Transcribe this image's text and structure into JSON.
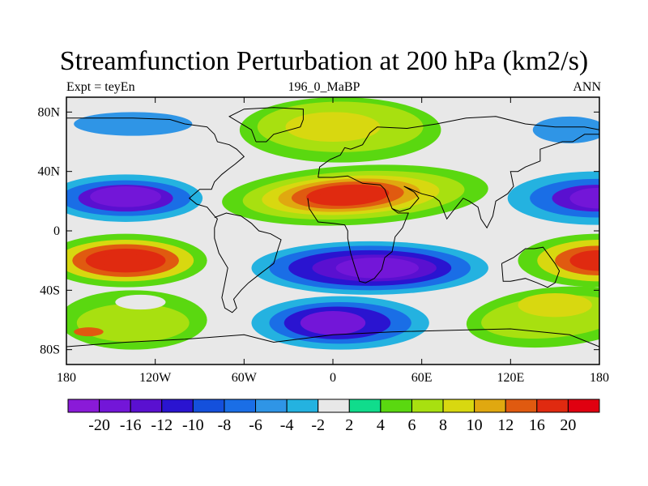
{
  "chart_data": {
    "type": "heatmap",
    "title": "Streamfunction Perturbation at 200 hPa (km2/s)",
    "subtitle_left": "Expt = teyEn",
    "subtitle_center": "196_0_MaBP",
    "subtitle_right": "ANN",
    "x_ticks": [
      {
        "value": -180,
        "label": "180"
      },
      {
        "value": -120,
        "label": "120W"
      },
      {
        "value": -60,
        "label": "60W"
      },
      {
        "value": 0,
        "label": "0"
      },
      {
        "value": 60,
        "label": "60E"
      },
      {
        "value": 120,
        "label": "120E"
      },
      {
        "value": 180,
        "label": "180"
      }
    ],
    "y_ticks": [
      {
        "value": 80,
        "label": "80N"
      },
      {
        "value": 40,
        "label": "40N"
      },
      {
        "value": 0,
        "label": "0"
      },
      {
        "value": -40,
        "label": "40S"
      },
      {
        "value": -80,
        "label": "80S"
      }
    ],
    "xlim": [
      -180,
      180
    ],
    "ylim": [
      -90,
      90
    ],
    "colorbar": {
      "levels": [
        -20,
        -16,
        -12,
        -10,
        -8,
        -6,
        -4,
        -2,
        2,
        4,
        6,
        8,
        10,
        12,
        16,
        20
      ],
      "labels": [
        "-20",
        "-16",
        "-12",
        "-10",
        "-8",
        "-6",
        "-4",
        "-2",
        "2",
        "4",
        "6",
        "8",
        "10",
        "12",
        "16",
        "20"
      ],
      "colors": [
        "#8a1ad8",
        "#7316d8",
        "#5a10d0",
        "#2a14d0",
        "#1450dc",
        "#1a6ee6",
        "#2f95e6",
        "#24b2e0",
        "#e8e8e8",
        "#10dc8c",
        "#5ad810",
        "#a8e010",
        "#d8d810",
        "#e0a810",
        "#e05a10",
        "#e02a10",
        "#e00010"
      ]
    },
    "features": [
      {
        "label": "negative low",
        "lon": -140,
        "lat": 22,
        "value": -18
      },
      {
        "label": "positive high",
        "lon": -140,
        "lat": -20,
        "value": 18
      },
      {
        "label": "positive high",
        "lon": 10,
        "lat": 23,
        "value": 18
      },
      {
        "label": "negative low",
        "lon": 30,
        "lat": -25,
        "value": -20
      },
      {
        "label": "negative low",
        "lon": 0,
        "lat": -63,
        "value": -20
      },
      {
        "label": "positive north",
        "lon": 0,
        "lat": 70,
        "value": 7
      },
      {
        "label": "negative north",
        "lon": -130,
        "lat": 72,
        "value": -6
      },
      {
        "label": "negative north",
        "lon": 160,
        "lat": 68,
        "value": -6
      },
      {
        "label": "negative east",
        "lon": 175,
        "lat": 22,
        "value": -16
      },
      {
        "label": "positive east",
        "lon": 175,
        "lat": -20,
        "value": 16
      },
      {
        "label": "positive south-west",
        "lon": -135,
        "lat": -62,
        "value": 8
      },
      {
        "label": "positive south-east",
        "lon": 150,
        "lat": -60,
        "value": 6
      }
    ]
  }
}
